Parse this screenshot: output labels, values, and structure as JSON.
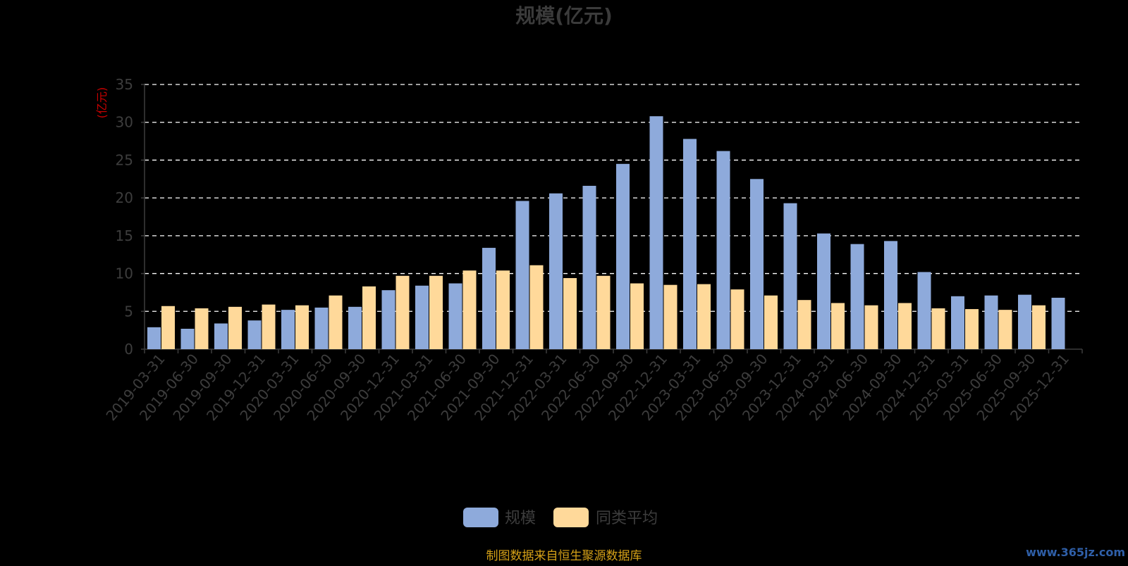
{
  "chart_data": {
    "type": "bar",
    "title": "规模(亿元)",
    "ylabel": "(亿元)",
    "xlabel": "",
    "ylim": [
      0,
      35
    ],
    "yticks": [
      0,
      5,
      10,
      15,
      20,
      25,
      30,
      35
    ],
    "grid": true,
    "legend_position": "bottom-center",
    "categories": [
      "2019-03-31",
      "2019-06-30",
      "2019-09-30",
      "2019-12-31",
      "2020-03-31",
      "2020-06-30",
      "2020-09-30",
      "2020-12-31",
      "2021-03-31",
      "2021-06-30",
      "2021-09-30",
      "2021-12-31",
      "2022-03-31",
      "2022-06-30",
      "2022-09-30",
      "2022-12-31",
      "2023-03-31",
      "2023-06-30",
      "2023-09-30",
      "2023-12-31",
      "2024-03-31",
      "2024-06-30",
      "2024-09-30",
      "2024-12-31",
      "2025-03-31",
      "2025-06-30",
      "2025-09-30",
      "2025-12-31"
    ],
    "series": [
      {
        "name": "规模",
        "color": "#8eaadb",
        "values": [
          2.9,
          2.7,
          3.4,
          3.8,
          5.2,
          5.5,
          5.6,
          7.8,
          8.4,
          8.7,
          13.4,
          19.6,
          20.6,
          21.6,
          24.5,
          30.8,
          27.8,
          26.2,
          22.5,
          19.3,
          15.3,
          13.9,
          14.3,
          10.2,
          7.0,
          7.1,
          7.2,
          6.8
        ]
      },
      {
        "name": "同类平均",
        "color": "#ffd99a",
        "values": [
          5.7,
          5.4,
          5.6,
          5.9,
          5.8,
          7.1,
          8.3,
          9.7,
          9.7,
          10.4,
          10.4,
          11.1,
          9.4,
          9.7,
          8.7,
          8.5,
          8.6,
          7.9,
          7.1,
          6.5,
          6.1,
          5.8,
          6.1,
          5.4,
          5.3,
          5.2,
          5.8,
          null
        ]
      }
    ]
  },
  "colors": {
    "background": "#000000",
    "title": "#3b3b3b",
    "axis_text": "#3d3d3d",
    "grid": "#ffffff",
    "unit": "#cc0000",
    "footer": "#d4a017",
    "watermark": "#2f5fa8"
  },
  "footer": {
    "source_note": "制图数据来自恒生聚源数据库"
  },
  "watermark": {
    "text": "www.365jz.com"
  }
}
